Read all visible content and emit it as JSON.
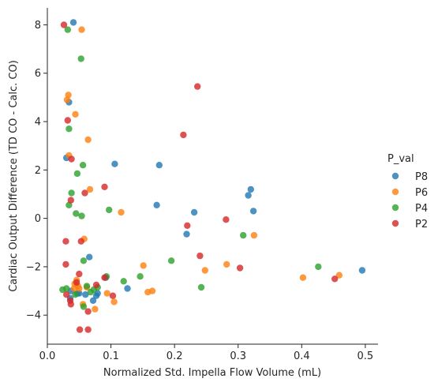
{
  "chart_data": {
    "type": "scatter",
    "title": "",
    "xlabel": "Normalized Std. Impella Flow Volume (mL)",
    "ylabel": "Cardiac Output Difference (TD CO - Calc. CO)",
    "xlim": [
      0.0,
      0.52
    ],
    "ylim": [
      -5.2,
      8.7
    ],
    "xticks": [
      0.0,
      0.1,
      0.2,
      0.3,
      0.4,
      0.5
    ],
    "xtick_labels": [
      "0.0",
      "0.1",
      "0.2",
      "0.3",
      "0.4",
      "0.5"
    ],
    "yticks": [
      -4,
      -2,
      0,
      2,
      4,
      6,
      8
    ],
    "ytick_labels": [
      "−4",
      "−2",
      "0",
      "2",
      "4",
      "6",
      "8"
    ],
    "grid": false,
    "legend": {
      "title": "P_val",
      "position": "right"
    },
    "series": [
      {
        "name": "P8",
        "color": "#1f77b4",
        "points": [
          [
            0.041,
            8.1
          ],
          [
            0.034,
            4.8
          ],
          [
            0.03,
            2.5
          ],
          [
            0.106,
            2.25
          ],
          [
            0.176,
            2.2
          ],
          [
            0.172,
            0.55
          ],
          [
            0.231,
            0.25
          ],
          [
            0.219,
            -0.65
          ],
          [
            0.316,
            0.95
          ],
          [
            0.32,
            1.2
          ],
          [
            0.324,
            0.3
          ],
          [
            0.066,
            -1.6
          ],
          [
            0.037,
            -3.0
          ],
          [
            0.047,
            -3.1
          ],
          [
            0.05,
            -3.1
          ],
          [
            0.06,
            -3.15
          ],
          [
            0.072,
            -3.4
          ],
          [
            0.077,
            -3.2
          ],
          [
            0.079,
            -3.1
          ],
          [
            0.126,
            -2.9
          ],
          [
            0.092,
            -2.45
          ],
          [
            0.495,
            -2.15
          ],
          [
            0.036,
            -3.3
          ]
        ]
      },
      {
        "name": "P6",
        "color": "#ff7f0e",
        "points": [
          [
            0.054,
            7.8
          ],
          [
            0.033,
            5.1
          ],
          [
            0.031,
            4.9
          ],
          [
            0.044,
            4.3
          ],
          [
            0.064,
            3.25
          ],
          [
            0.034,
            2.6
          ],
          [
            0.067,
            1.2
          ],
          [
            0.116,
            0.25
          ],
          [
            0.058,
            -0.85
          ],
          [
            0.151,
            -1.95
          ],
          [
            0.282,
            -1.9
          ],
          [
            0.325,
            -0.7
          ],
          [
            0.248,
            -2.15
          ],
          [
            0.043,
            -2.7
          ],
          [
            0.046,
            -2.55
          ],
          [
            0.05,
            -2.9
          ],
          [
            0.056,
            -3.55
          ],
          [
            0.075,
            -3.75
          ],
          [
            0.094,
            -3.1
          ],
          [
            0.105,
            -3.45
          ],
          [
            0.158,
            -3.05
          ],
          [
            0.165,
            -3.0
          ],
          [
            0.402,
            -2.45
          ],
          [
            0.459,
            -2.35
          ],
          [
            0.048,
            -2.8
          ],
          [
            0.062,
            -2.85
          ],
          [
            0.042,
            -2.9
          ]
        ]
      },
      {
        "name": "P4",
        "color": "#2ca02c",
        "points": [
          [
            0.032,
            7.8
          ],
          [
            0.053,
            6.6
          ],
          [
            0.034,
            3.7
          ],
          [
            0.056,
            2.2
          ],
          [
            0.047,
            1.85
          ],
          [
            0.038,
            1.05
          ],
          [
            0.034,
            0.55
          ],
          [
            0.045,
            0.2
          ],
          [
            0.054,
            0.1
          ],
          [
            0.097,
            0.35
          ],
          [
            0.057,
            -1.75
          ],
          [
            0.12,
            -2.6
          ],
          [
            0.146,
            -2.4
          ],
          [
            0.195,
            -1.75
          ],
          [
            0.242,
            -2.85
          ],
          [
            0.308,
            -0.7
          ],
          [
            0.426,
            -2.0
          ],
          [
            0.024,
            -2.95
          ],
          [
            0.03,
            -2.9
          ],
          [
            0.044,
            -3.15
          ],
          [
            0.057,
            -3.65
          ],
          [
            0.068,
            -3.05
          ],
          [
            0.073,
            -2.95
          ],
          [
            0.079,
            -2.85
          ],
          [
            0.093,
            -2.4
          ],
          [
            0.062,
            -2.8
          ]
        ]
      },
      {
        "name": "P2",
        "color": "#d62728",
        "points": [
          [
            0.026,
            8.0
          ],
          [
            0.236,
            5.45
          ],
          [
            0.032,
            4.05
          ],
          [
            0.038,
            2.45
          ],
          [
            0.214,
            3.45
          ],
          [
            0.037,
            0.75
          ],
          [
            0.059,
            1.05
          ],
          [
            0.09,
            1.3
          ],
          [
            0.029,
            -0.95
          ],
          [
            0.053,
            -0.95
          ],
          [
            0.22,
            -0.3
          ],
          [
            0.281,
            -0.05
          ],
          [
            0.24,
            -1.55
          ],
          [
            0.029,
            -1.9
          ],
          [
            0.046,
            -2.65
          ],
          [
            0.05,
            -2.3
          ],
          [
            0.077,
            -2.75
          ],
          [
            0.09,
            -2.45
          ],
          [
            0.064,
            -3.85
          ],
          [
            0.103,
            -3.2
          ],
          [
            0.03,
            -3.15
          ],
          [
            0.036,
            -3.4
          ],
          [
            0.037,
            -3.55
          ],
          [
            0.051,
            -4.6
          ],
          [
            0.064,
            -4.6
          ],
          [
            0.303,
            -2.05
          ],
          [
            0.452,
            -2.5
          ]
        ]
      }
    ]
  }
}
